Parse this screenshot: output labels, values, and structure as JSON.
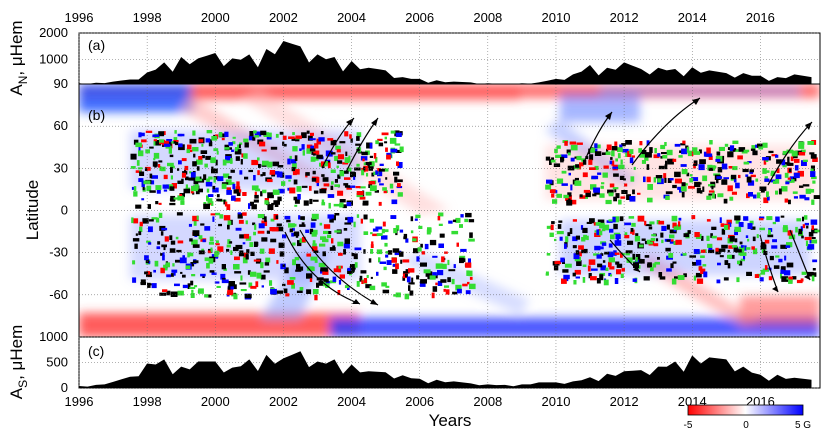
{
  "chart_data": [
    {
      "id": "a",
      "type": "area",
      "panel_label": "(a)",
      "ylabel": "A",
      "ylabel_sub": "N",
      "ylabel_unit": ", μHem",
      "ylim": [
        90,
        2000
      ],
      "yticks": [
        90,
        1000,
        2000
      ],
      "x": [
        1996.0,
        1996.5,
        1997.0,
        1997.5,
        1998.0,
        1998.5,
        1999.0,
        1999.5,
        2000.0,
        2000.5,
        2001.0,
        2001.5,
        2002.0,
        2002.5,
        2003.0,
        2003.5,
        2004.0,
        2004.5,
        2005.0,
        2005.5,
        2006.0,
        2006.5,
        2007.0,
        2007.5,
        2008.0,
        2008.5,
        2009.0,
        2009.5,
        2010.0,
        2010.5,
        2011.0,
        2011.5,
        2012.0,
        2012.5,
        2013.0,
        2013.5,
        2014.0,
        2014.5,
        2015.0,
        2015.5,
        2016.0,
        2016.5,
        2017.0,
        2017.5
      ],
      "values": [
        120,
        140,
        180,
        260,
        520,
        900,
        1100,
        1050,
        1250,
        1050,
        1200,
        1400,
        1700,
        1500,
        1200,
        1100,
        950,
        700,
        600,
        350,
        280,
        230,
        180,
        150,
        120,
        110,
        120,
        150,
        280,
        450,
        800,
        700,
        900,
        650,
        700,
        650,
        720,
        600,
        500,
        500,
        400,
        350,
        450,
        350
      ]
    },
    {
      "id": "b",
      "type": "heatmap",
      "panel_label": "(b)",
      "ylabel": "Latitude",
      "ylim": [
        -90,
        90
      ],
      "yticks": [
        -90,
        -60,
        -30,
        0,
        30,
        60,
        90
      ],
      "colorbar": {
        "min": -5,
        "max": 5,
        "unit": "G",
        "ticks": [
          "-5",
          "0",
          "5 G"
        ],
        "colors": [
          "#ff0000",
          "#ffffff",
          "#0000ff"
        ]
      }
    },
    {
      "id": "c",
      "type": "area",
      "panel_label": "(c)",
      "ylabel": "A",
      "ylabel_sub": "S",
      "ylabel_unit": ", μHem",
      "ylim": [
        0,
        1000
      ],
      "yticks": [
        0,
        500,
        1000
      ],
      "xlabel": "Years",
      "x": [
        1996.0,
        1996.5,
        1997.0,
        1997.5,
        1998.0,
        1998.5,
        1999.0,
        1999.5,
        2000.0,
        2000.5,
        2001.0,
        2001.5,
        2002.0,
        2002.5,
        2003.0,
        2003.5,
        2004.0,
        2004.5,
        2005.0,
        2005.5,
        2006.0,
        2006.5,
        2007.0,
        2007.5,
        2008.0,
        2008.5,
        2009.0,
        2009.5,
        2010.0,
        2010.5,
        2011.0,
        2011.5,
        2012.0,
        2012.5,
        2013.0,
        2013.5,
        2014.0,
        2014.5,
        2015.0,
        2015.5,
        2016.0,
        2016.5,
        2017.0,
        2017.5
      ],
      "values": [
        40,
        60,
        120,
        220,
        480,
        560,
        420,
        520,
        520,
        400,
        560,
        650,
        580,
        720,
        520,
        560,
        460,
        330,
        310,
        250,
        180,
        160,
        130,
        90,
        70,
        60,
        70,
        110,
        110,
        130,
        210,
        280,
        330,
        350,
        420,
        520,
        640,
        600,
        560,
        420,
        260,
        260,
        200,
        160
      ]
    }
  ],
  "x_axis": {
    "min": 1996,
    "max": 2017.75,
    "ticks": [
      "1996",
      "1998",
      "2000",
      "2002",
      "2004",
      "2006",
      "2008",
      "2010",
      "2012",
      "2014",
      "2016"
    ]
  },
  "colors": {
    "positive": "#0000ff",
    "negative": "#ff0000",
    "spots_green": "#33dd33",
    "spots_black": "#000000"
  }
}
